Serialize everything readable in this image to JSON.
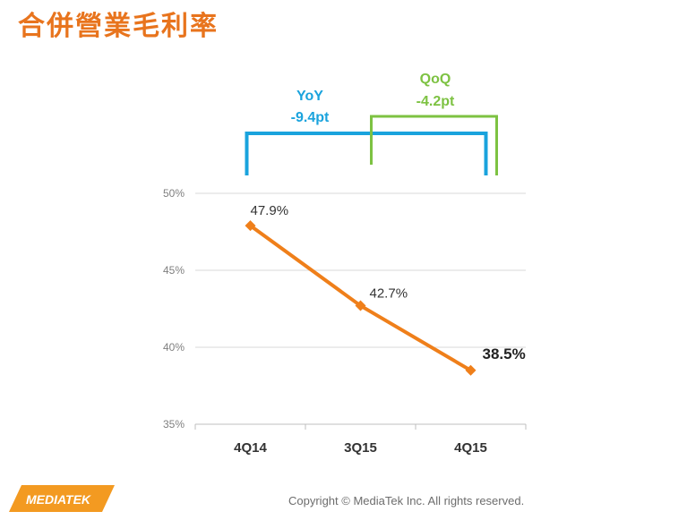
{
  "slide": {
    "title": "合併營業毛利率",
    "copyright": "Copyright © MediaTek Inc. All rights reserved.",
    "logo_text": "MEDIATEK"
  },
  "colors": {
    "title": "#e8741d",
    "line": "#ef7f1a",
    "yoy": "#1aa3dd",
    "qoq": "#7dc242",
    "grid": "#d9d9d9",
    "axis_text": "#7f7f7f"
  },
  "chart_data": {
    "type": "line",
    "categories": [
      "4Q14",
      "3Q15",
      "4Q15"
    ],
    "series": [
      {
        "values": [
          47.9,
          42.7,
          38.5
        ]
      }
    ],
    "data_labels": [
      "47.9%",
      "42.7%",
      "38.5%"
    ],
    "y_ticks": [
      {
        "value": 50,
        "label": "50%"
      },
      {
        "value": 45,
        "label": "45%"
      },
      {
        "value": 40,
        "label": "40%"
      },
      {
        "value": 35,
        "label": "35%"
      }
    ],
    "ylim": [
      35,
      50
    ],
    "grid": true,
    "annotations": {
      "yoy": {
        "title": "YoY",
        "value": "-9.4pt"
      },
      "qoq": {
        "title": "QoQ",
        "value": "-4.2pt"
      }
    }
  }
}
